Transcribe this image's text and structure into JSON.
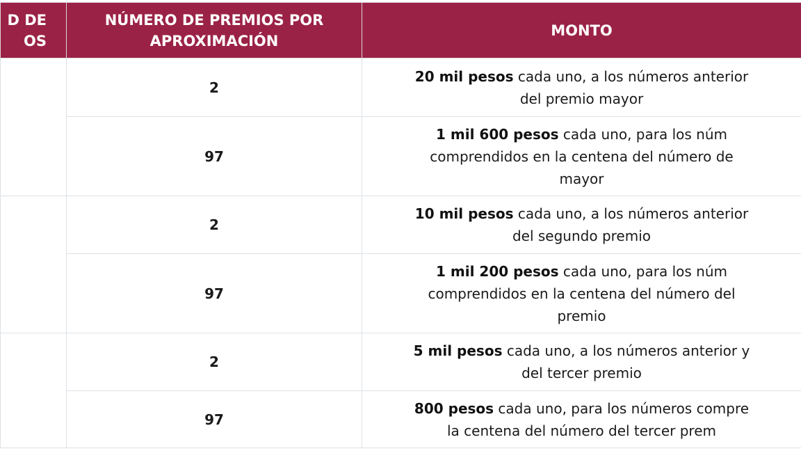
{
  "header_color": "#9b2247",
  "headers": {
    "col1": [
      "D DE",
      "OS"
    ],
    "col2": [
      "NÚMERO DE PREMIOS POR",
      "APROXIMACIÓN"
    ],
    "col3": "MONTO"
  },
  "rows": [
    {
      "count": "2",
      "bold": "20 mil pesos",
      "line1": " cada uno, a los números anterior",
      "line2": "del premio mayor"
    },
    {
      "count": "97",
      "bold": "1 mil 600 pesos",
      "line1": " cada uno, para los núm",
      "line2": "comprendidos en la centena del número de",
      "line3": "mayor"
    },
    {
      "count": "2",
      "bold": "10 mil pesos",
      "line1": " cada uno, a los números anterior",
      "line2": "del segundo premio"
    },
    {
      "count": "97",
      "bold": "1 mil 200 pesos",
      "line1": " cada uno, para los núm",
      "line2": "comprendidos en la centena del número del",
      "line3": "premio"
    },
    {
      "count": "2",
      "bold": "5 mil pesos",
      "line1": " cada uno, a los números anterior y",
      "line2": "del tercer premio"
    },
    {
      "count": "97",
      "bold": "800 pesos",
      "line1": " cada uno, para los números compre",
      "line2": "la centena del número del tercer prem"
    }
  ]
}
